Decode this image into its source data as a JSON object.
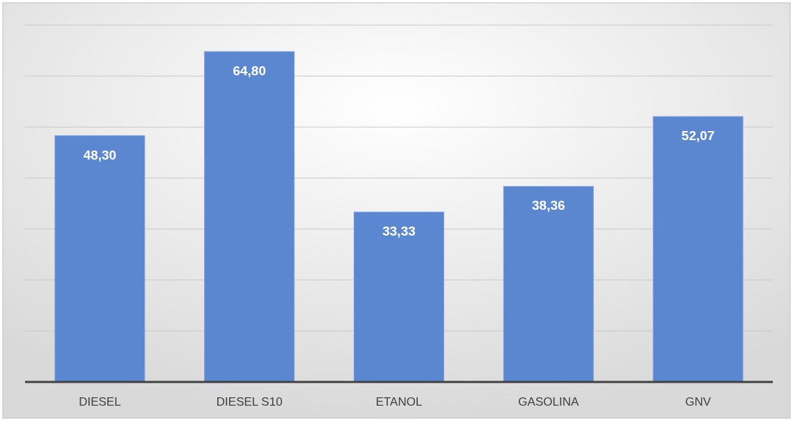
{
  "chart_data": {
    "type": "bar",
    "categories": [
      "DIESEL",
      "DIESEL S10",
      "ETANOL",
      "GASOLINA",
      "GNV"
    ],
    "values": [
      48.3,
      64.8,
      33.33,
      38.36,
      52.07
    ],
    "value_labels": [
      "48,30",
      "64,80",
      "33,33",
      "38,36",
      "52,07"
    ],
    "color": "#5b87d0",
    "ylim": [
      0,
      70
    ],
    "yticks": [
      {
        "value": 0,
        "label": null
      },
      {
        "value": 10,
        "label": null
      },
      {
        "value": 20,
        "label": null
      },
      {
        "value": 30,
        "label": null
      },
      {
        "value": 40,
        "label": null
      },
      {
        "value": 50,
        "label": null
      },
      {
        "value": 60,
        "label": null
      },
      {
        "value": 70,
        "label": null
      }
    ],
    "grid": "y",
    "tick_labels": "x"
  }
}
